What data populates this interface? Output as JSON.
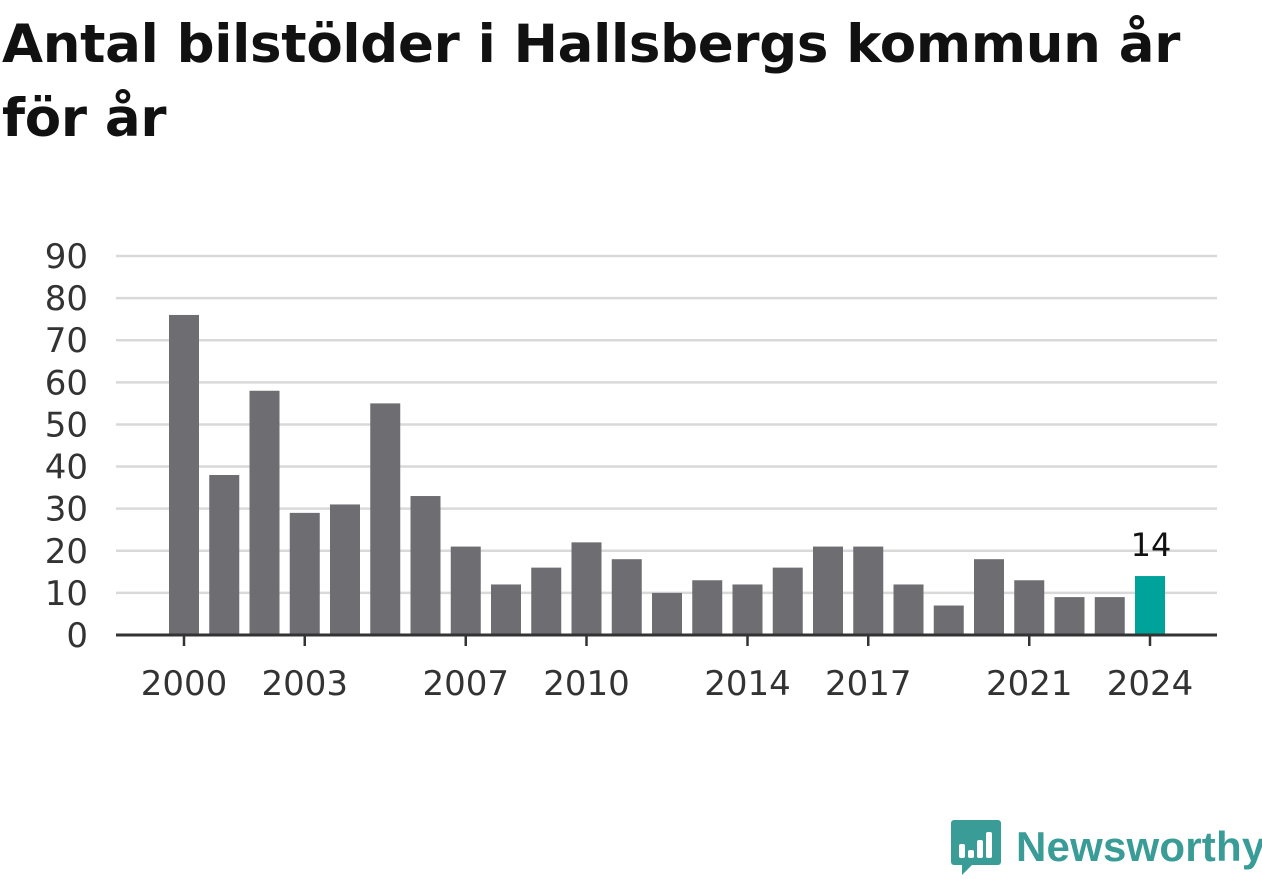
{
  "title": "Antal bilstölder i Hallsbergs kommun år för år",
  "chart_data": {
    "type": "bar",
    "title": "Antal bilstölder i Hallsbergs kommun år för år",
    "categories": [
      "2000",
      "2001",
      "2002",
      "2003",
      "2004",
      "2005",
      "2006",
      "2007",
      "2008",
      "2009",
      "2010",
      "2011",
      "2012",
      "2013",
      "2014",
      "2015",
      "2016",
      "2017",
      "2018",
      "2019",
      "2020",
      "2021",
      "2022",
      "2023",
      "2024"
    ],
    "values": [
      76,
      38,
      58,
      29,
      31,
      55,
      33,
      21,
      12,
      16,
      22,
      18,
      10,
      13,
      12,
      16,
      21,
      21,
      12,
      7,
      18,
      13,
      9,
      9,
      14
    ],
    "x_tick_labels": [
      "2000",
      "2003",
      "2007",
      "2010",
      "2014",
      "2017",
      "2021",
      "2024"
    ],
    "y_ticks": [
      0,
      10,
      20,
      30,
      40,
      50,
      60,
      70,
      80,
      90
    ],
    "ylim": [
      0,
      90
    ],
    "xlabel": "",
    "ylabel": "",
    "grid": true,
    "highlight_index": 24,
    "highlight_label": "14",
    "colors": {
      "bar": "#6e6d72",
      "highlight": "#00a39a",
      "grid": "#d9d9d9",
      "axis": "#333333"
    }
  },
  "logo": {
    "text": "Newsworthy",
    "icon": "newsworthy-chart-bubble-icon",
    "color": "#3a9c96"
  }
}
